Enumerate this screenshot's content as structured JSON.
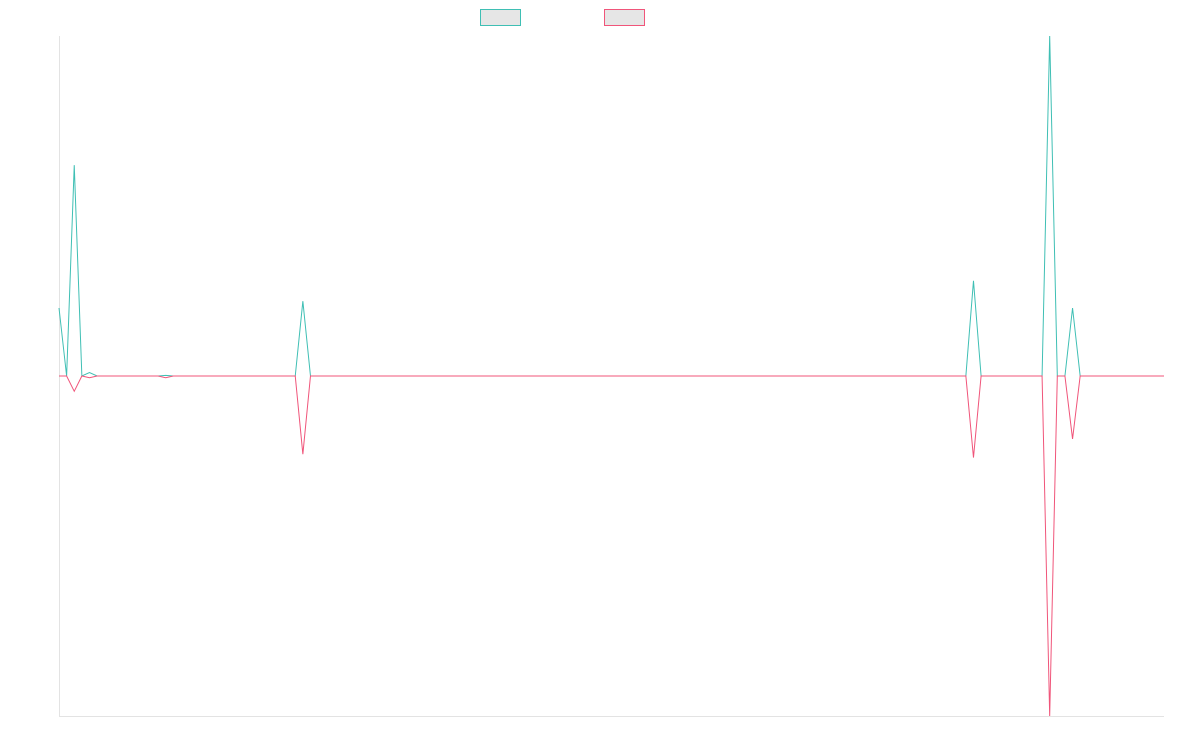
{
  "chart_data": {
    "type": "line",
    "title": "",
    "xlabel": "",
    "ylabel": "",
    "grid": false,
    "legend_placement": "top-center",
    "ylim": [
      -100,
      100
    ],
    "x": [
      0,
      1,
      2,
      3,
      4,
      5,
      6,
      7,
      8,
      9,
      10,
      11,
      12,
      13,
      14,
      15,
      16,
      17,
      18,
      19,
      20,
      21,
      22,
      23,
      24,
      25,
      26,
      27,
      28,
      29,
      30,
      31,
      32,
      33,
      34,
      35,
      36,
      37,
      38,
      39,
      40,
      41,
      42,
      43,
      44,
      45,
      46,
      47,
      48,
      49,
      50,
      51,
      52,
      53,
      54,
      55,
      56,
      57,
      58,
      59,
      60,
      61,
      62,
      63,
      64,
      65,
      66,
      67,
      68,
      69,
      70,
      71,
      72,
      73,
      74,
      75,
      76,
      77,
      78,
      79,
      80,
      81,
      82,
      83,
      84,
      85,
      86,
      87,
      88,
      89,
      90,
      91,
      92,
      93,
      94,
      95,
      96,
      97,
      98,
      99,
      100,
      101,
      102,
      103,
      104,
      105,
      106,
      107,
      108,
      109,
      110,
      111,
      112,
      113,
      114,
      115,
      116,
      117,
      118,
      119,
      120,
      121,
      122,
      123,
      124,
      125,
      126,
      127,
      128,
      129,
      130,
      131,
      132,
      133,
      134,
      135,
      136,
      137,
      138,
      139,
      140,
      141,
      142,
      143,
      144,
      145
    ],
    "series": [
      {
        "name": "",
        "color": "#3fbfb4",
        "values": [
          20,
          0,
          62,
          0,
          1,
          0,
          0,
          0,
          0,
          0,
          0,
          0,
          0,
          0,
          0.2,
          0,
          0,
          0,
          0,
          0,
          0,
          0,
          0,
          0,
          0,
          0,
          0,
          0,
          0,
          0,
          0,
          0,
          22,
          0,
          0,
          0,
          0,
          0,
          0,
          0,
          0,
          0,
          0,
          0,
          0,
          0,
          0,
          0,
          0,
          0,
          0,
          0,
          0,
          0,
          0,
          0,
          0,
          0,
          0,
          0,
          0,
          0,
          0,
          0,
          0,
          0,
          0,
          0,
          0,
          0,
          0,
          0,
          0,
          0,
          0,
          0,
          0,
          0,
          0,
          0,
          0,
          0,
          0,
          0,
          0,
          0,
          0,
          0,
          0,
          0,
          0,
          0,
          0,
          0,
          0,
          0,
          0,
          0,
          0,
          0,
          0,
          0,
          0,
          0,
          0,
          0,
          0,
          0,
          0,
          0,
          0,
          0,
          0,
          0,
          0,
          0,
          0,
          0,
          0,
          0,
          28,
          0,
          0,
          0,
          0,
          0,
          0,
          0,
          0,
          0,
          100,
          0,
          0,
          20,
          0,
          0,
          0,
          0,
          0,
          0,
          0,
          0,
          0,
          0,
          0,
          0
        ]
      },
      {
        "name": "",
        "color": "#f0557a",
        "values": [
          0,
          0,
          -4.5,
          0,
          -0.5,
          0,
          0,
          0,
          0,
          0,
          0,
          0,
          0,
          0,
          -0.5,
          0,
          0,
          0,
          0,
          0,
          0,
          0,
          0,
          0,
          0,
          0,
          0,
          0,
          0,
          0,
          0,
          0,
          -23,
          0,
          0,
          0,
          0,
          0,
          0,
          0,
          0,
          0,
          0,
          0,
          0,
          0,
          0,
          0,
          0,
          0,
          0,
          0,
          0,
          0,
          0,
          0,
          0,
          0,
          0,
          0,
          0,
          0,
          0,
          0,
          0,
          0,
          0,
          0,
          0,
          0,
          0,
          0,
          0,
          0,
          0,
          0,
          0,
          0,
          0,
          0,
          0,
          0,
          0,
          0,
          0,
          0,
          0,
          0,
          0,
          0,
          0,
          0,
          0,
          0,
          0,
          0,
          0,
          0,
          0,
          0,
          0,
          0,
          0,
          0,
          0,
          0,
          0,
          0,
          0,
          0,
          0,
          0,
          0,
          0,
          0,
          0,
          0,
          0,
          0,
          0,
          -24,
          0,
          0,
          0,
          0,
          0,
          0,
          0,
          0,
          0,
          -100,
          0,
          0,
          -18.5,
          0,
          0,
          0,
          0,
          0,
          0,
          0,
          0,
          0,
          0,
          0,
          0
        ]
      }
    ]
  }
}
